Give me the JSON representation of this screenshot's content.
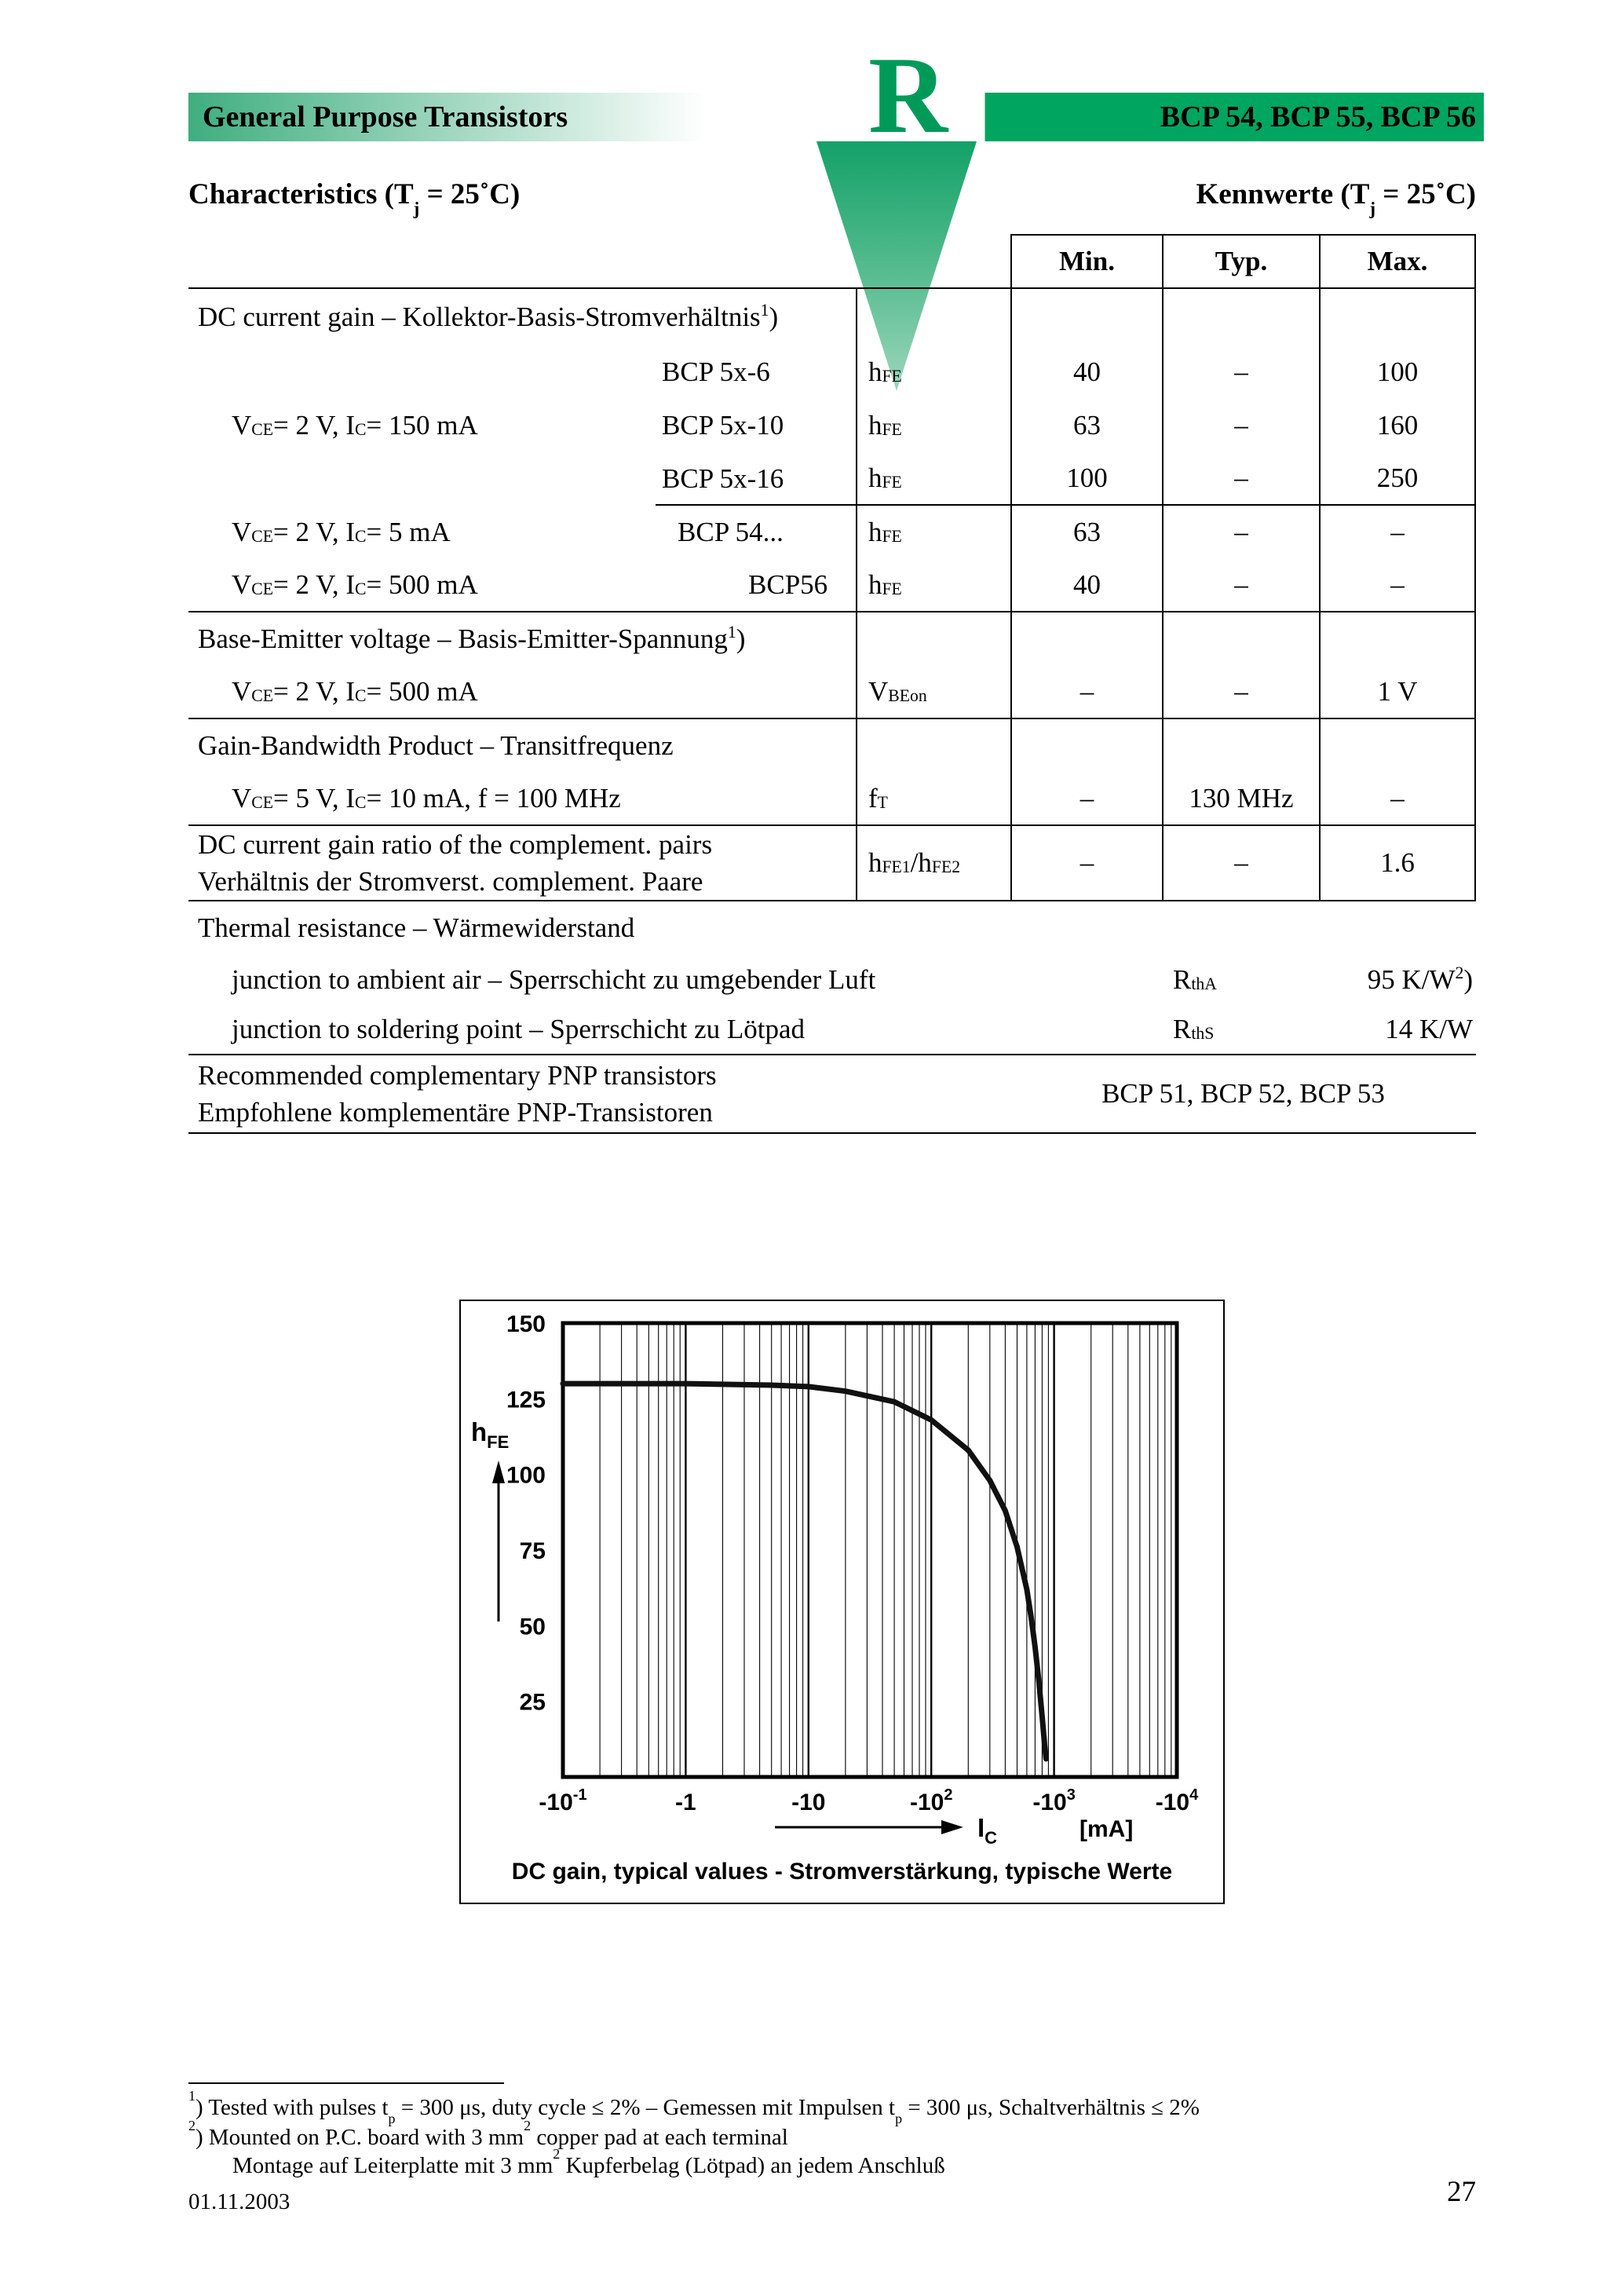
{
  "colors": {
    "band_green": "#00A55F",
    "logo_green": "#009A58"
  },
  "header": {
    "left_title": "General Purpose Transistors",
    "logo_letter": "R",
    "right_title": "BCP 54, BCP 55, BCP 56"
  },
  "headings": {
    "characteristics": "Characteristics (T_j_ = 25˚C)",
    "kennwerte": "Kennwerte (T_j_ = 25˚C)"
  },
  "table": {
    "col_headers": [
      "Min.",
      "Typ.",
      "Max."
    ],
    "gain": {
      "title": "DC current gain – Kollektor-Basis-Stromverhältnis ^1^)",
      "conditions": [
        "V_CE_ = 2 V, I_C_ = 150 mA",
        "V_CE_ = 2 V, I_C_ = 5 mA",
        "V_CE_ = 2 V, I_C_ = 500 mA"
      ],
      "rows": [
        {
          "type": "BCP 5x-6",
          "symbol": "h_FE_",
          "min": "40",
          "typ": "–",
          "max": "100"
        },
        {
          "type": "BCP 5x-10",
          "symbol": "h_FE_",
          "min": "63",
          "typ": "–",
          "max": "160"
        },
        {
          "type": "BCP 5x-16",
          "symbol": "h_FE_",
          "min": "100",
          "typ": "–",
          "max": "250"
        },
        {
          "type": "BCP 54...",
          "symbol": "h_FE_",
          "min": "63",
          "typ": "–",
          "max": "–"
        },
        {
          "type": "BCP56",
          "symbol": "h_FE_",
          "min": "40",
          "typ": "–",
          "max": "–"
        }
      ]
    },
    "vbe": {
      "title": "Base-Emitter voltage – Basis-Emitter-Spannung ^1^)",
      "condition": "V_CE_ = 2 V, I_C_ = 500 mA",
      "symbol": "V_BEon_",
      "min": "–",
      "typ": "–",
      "max": "1 V"
    },
    "ft": {
      "title": "Gain-Bandwidth Product – Transitfrequenz",
      "condition": "V_CE_ = 5 V, I_C_ = 10 mA, f = 100 MHz",
      "symbol": "f_T_",
      "min": "–",
      "typ": "130 MHz",
      "max": "–"
    },
    "ratio": {
      "line1": "DC current gain ratio of the complement. pairs",
      "line2": "Verhältnis der Stromverst. complement. Paare",
      "symbol": "h_FE1_/h_FE2_",
      "min": "–",
      "typ": "–",
      "max": "1.6"
    },
    "thermal": {
      "title": "Thermal resistance – Wärmewiderstand",
      "rows": [
        {
          "label": "junction to ambient air – Sperrschicht zu umgebender Luft",
          "symbol": "R_thA_",
          "value": "95 K/W ^2^)"
        },
        {
          "label": "junction to soldering point – Sperrschicht zu Lötpad",
          "symbol": "R_thS_",
          "value": "14 K/W"
        }
      ]
    },
    "pnp": {
      "line1": "Recommended complementary PNP transistors",
      "line2": "Empfohlene komplementäre PNP-Transistoren",
      "value": "BCP 51, BCP 52, BCP 53"
    }
  },
  "chart_data": {
    "type": "line",
    "x_scale": "log",
    "x_range": [
      0.1,
      10000
    ],
    "y_range": [
      0,
      150
    ],
    "y_ticks": [
      25,
      50,
      75,
      100,
      125,
      150
    ],
    "x_tick_values": [
      0.1,
      1,
      10,
      100,
      1000,
      10000
    ],
    "x_tick_labels": [
      "-10^-1^",
      "-1",
      "-10",
      "-10^2^",
      "-10^3^",
      "-10^4^"
    ],
    "x_axis_label": "I_C_",
    "x_unit": "[mA]",
    "y_axis_label": "h_FE_",
    "grid": "log-vertical",
    "legend_position": "none",
    "caption": "DC gain, typical values - Stromverstärkung, typische Werte",
    "series": [
      {
        "name": "h_FE_ typical values",
        "points": [
          [
            0.1,
            130
          ],
          [
            1,
            130
          ],
          [
            5,
            129.5
          ],
          [
            10,
            129
          ],
          [
            20,
            127.5
          ],
          [
            50,
            124
          ],
          [
            100,
            118
          ],
          [
            200,
            108
          ],
          [
            300,
            98
          ],
          [
            400,
            88
          ],
          [
            500,
            76
          ],
          [
            600,
            62
          ],
          [
            650,
            53
          ],
          [
            700,
            43
          ],
          [
            750,
            32
          ],
          [
            800,
            20
          ],
          [
            840,
            10
          ],
          [
            860,
            6
          ]
        ]
      }
    ]
  },
  "footnotes": {
    "fn1": "^1^)   Tested with pulses t_p_ = 300 μs, duty cycle ≤ 2%   –   Gemessen mit Impulsen t_p_ = 300 μs, Schaltverhältnis ≤ 2%",
    "fn2": "^2^)   Mounted on P.C. board with 3 mm^2^ copper pad at each terminal",
    "fn2_cont": "Montage auf Leiterplatte mit 3 mm^2^ Kupferbelag (Lötpad) an jedem Anschluß",
    "date": "01.11.2003",
    "page_number": "27"
  }
}
